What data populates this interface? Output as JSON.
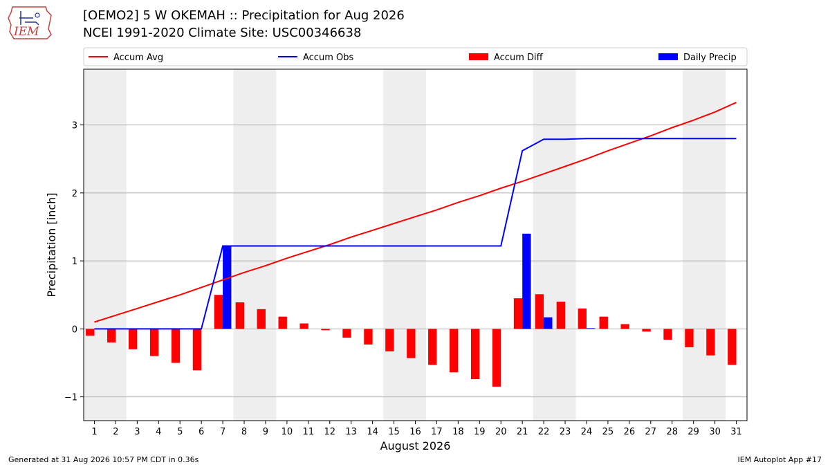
{
  "header": {
    "title": "[OEMO2] 5 W OKEMAH :: Precipitation for Aug 2026",
    "subtitle": "NCEI 1991-2020 Climate Site: USC00346638",
    "logo_text": "IEM"
  },
  "footer": {
    "generated": "Generated at 31 Aug 2026 10:57 PM CDT in 0.36s",
    "app": "IEM Autoplot App #17"
  },
  "colors": {
    "avg": "#ff0000",
    "obs": "#0000ff",
    "diff": "#ff0000",
    "daily": "#0000ff",
    "weekend_shade": "#eeeeee",
    "grid": "#b0b0b0"
  },
  "chart_data": {
    "type": "bar",
    "xlabel": "August 2026",
    "ylabel": "Precipitation [inch]",
    "ylim": [
      -1.35,
      3.82
    ],
    "yticks": [
      -1,
      0,
      1,
      2,
      3
    ],
    "ytick_labels": [
      "−1",
      "0",
      "1",
      "2",
      "3"
    ],
    "grid": "horizontal",
    "legend_placement": "top",
    "x": [
      1,
      2,
      3,
      4,
      5,
      6,
      7,
      8,
      9,
      10,
      11,
      12,
      13,
      14,
      15,
      16,
      17,
      18,
      19,
      20,
      21,
      22,
      23,
      24,
      25,
      26,
      27,
      28,
      29,
      30,
      31
    ],
    "shaded_days": [
      [
        1,
        2
      ],
      [
        8,
        9
      ],
      [
        15,
        16
      ],
      [
        22,
        23
      ],
      [
        29,
        30
      ]
    ],
    "series": [
      {
        "name": "Accum Avg",
        "kind": "line",
        "values": [
          0.1,
          0.2,
          0.3,
          0.4,
          0.5,
          0.61,
          0.72,
          0.83,
          0.93,
          1.04,
          1.14,
          1.24,
          1.35,
          1.45,
          1.55,
          1.65,
          1.75,
          1.86,
          1.96,
          2.07,
          2.17,
          2.28,
          2.39,
          2.5,
          2.62,
          2.73,
          2.84,
          2.96,
          3.07,
          3.19,
          3.33
        ]
      },
      {
        "name": "Accum Obs",
        "kind": "line",
        "values": [
          0,
          0,
          0,
          0,
          0,
          0,
          1.22,
          1.22,
          1.22,
          1.22,
          1.22,
          1.22,
          1.22,
          1.22,
          1.22,
          1.22,
          1.22,
          1.22,
          1.22,
          1.22,
          2.62,
          2.79,
          2.79,
          2.8,
          2.8,
          2.8,
          2.8,
          2.8,
          2.8,
          2.8,
          2.8
        ]
      },
      {
        "name": "Accum Diff",
        "kind": "bar",
        "values": [
          -0.1,
          -0.2,
          -0.3,
          -0.4,
          -0.5,
          -0.61,
          0.5,
          0.39,
          0.29,
          0.18,
          0.08,
          -0.02,
          -0.13,
          -0.23,
          -0.33,
          -0.43,
          -0.53,
          -0.64,
          -0.74,
          -0.85,
          0.45,
          0.51,
          0.4,
          0.3,
          0.18,
          0.07,
          -0.04,
          -0.16,
          -0.27,
          -0.39,
          -0.53
        ]
      },
      {
        "name": "Daily Precip",
        "kind": "bar",
        "values": [
          0,
          0,
          0,
          0,
          0,
          0,
          1.22,
          0,
          0,
          0,
          0,
          0,
          0,
          0,
          0,
          0,
          0,
          0,
          0,
          0,
          1.4,
          0.17,
          0,
          0.01,
          0,
          0,
          0,
          0,
          0,
          0,
          0
        ]
      }
    ]
  }
}
